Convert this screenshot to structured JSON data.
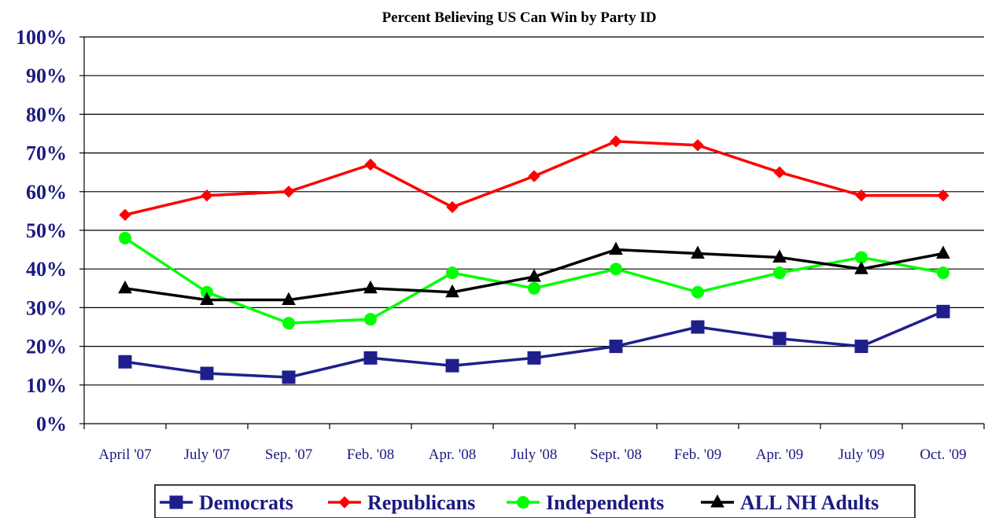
{
  "chart_data": {
    "type": "line",
    "title": "Percent Believing US Can Win by Party ID",
    "xlabel": "",
    "ylabel": "",
    "categories": [
      "April '07",
      "July '07",
      "Sep. '07",
      "Feb. '08",
      "Apr. '08",
      "July '08",
      "Sept. '08",
      "Feb. '09",
      "Apr. '09",
      "July '09",
      "Oct. '09"
    ],
    "ylim": [
      0,
      100
    ],
    "yticks": [
      "0%",
      "10%",
      "20%",
      "30%",
      "40%",
      "50%",
      "60%",
      "70%",
      "80%",
      "90%",
      "100%"
    ],
    "grid": true,
    "legend_position": "bottom",
    "series": [
      {
        "name": "Democrats",
        "color": "#1f1f8c",
        "marker": "square",
        "values": [
          16,
          13,
          12,
          17,
          15,
          17,
          20,
          25,
          22,
          20,
          29
        ]
      },
      {
        "name": "Republicans",
        "color": "#ff0000",
        "marker": "diamond",
        "values": [
          54,
          59,
          60,
          67,
          56,
          64,
          73,
          72,
          65,
          59,
          59
        ]
      },
      {
        "name": "Independents",
        "color": "#00ff00",
        "marker": "circle",
        "values": [
          48,
          34,
          26,
          27,
          39,
          35,
          40,
          34,
          39,
          43,
          39
        ]
      },
      {
        "name": "ALL NH Adults",
        "color": "#000000",
        "marker": "triangle",
        "values": [
          35,
          32,
          32,
          35,
          34,
          38,
          45,
          44,
          43,
          40,
          44
        ]
      }
    ]
  }
}
